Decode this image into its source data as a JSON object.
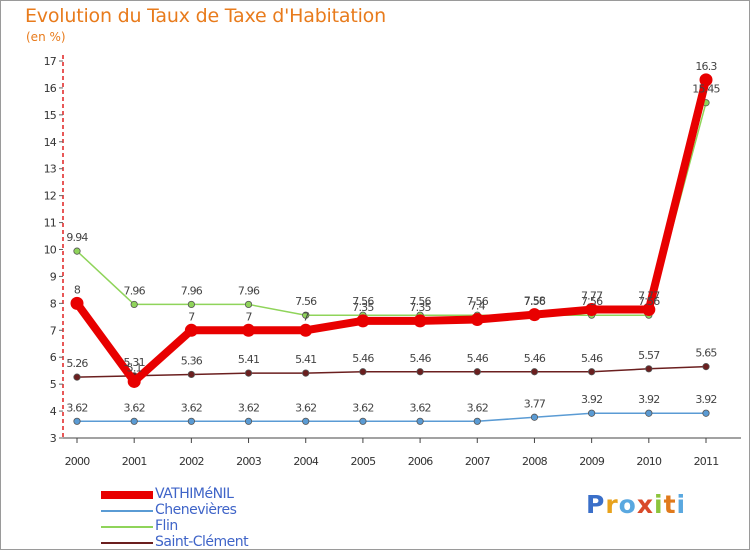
{
  "chart_data": {
    "type": "line",
    "title": "Evolution du Taux de Taxe d'Habitation",
    "subtitle": "(en %)",
    "xlabel": "",
    "ylabel": "",
    "categories": [
      "2000",
      "2001",
      "2002",
      "2003",
      "2004",
      "2005",
      "2006",
      "2007",
      "2008",
      "2009",
      "2010",
      "2011"
    ],
    "ylim": [
      3,
      17
    ],
    "yticks": [
      3,
      4,
      5,
      6,
      7,
      8,
      9,
      10,
      11,
      12,
      13,
      14,
      15,
      16,
      17
    ],
    "grid": false,
    "legend_position": "bottom-left",
    "series": [
      {
        "name": "VATHIMéNIL",
        "color": "#e80000",
        "values": [
          8,
          5.1,
          7,
          7,
          7,
          7.35,
          7.35,
          7.4,
          7.58,
          7.77,
          7.77,
          16.3
        ],
        "labels": [
          "8",
          "5.1",
          "7",
          "7",
          "7",
          "7.35",
          "7.35",
          "7.4",
          "7.58",
          "7.77",
          "7.77",
          "16.3"
        ]
      },
      {
        "name": "Chenevières",
        "color": "#5a9bd4",
        "values": [
          3.62,
          3.62,
          3.62,
          3.62,
          3.62,
          3.62,
          3.62,
          3.62,
          3.77,
          3.92,
          3.92,
          3.92
        ],
        "labels": [
          "3.62",
          "3.62",
          "3.62",
          "3.62",
          "3.62",
          "3.62",
          "3.62",
          "3.62",
          "3.77",
          "3.92",
          "3.92",
          "3.92"
        ]
      },
      {
        "name": "Flin",
        "color": "#8fd45a",
        "values": [
          9.94,
          7.96,
          7.96,
          7.96,
          7.56,
          7.56,
          7.56,
          7.56,
          7.56,
          7.56,
          7.56,
          15.45
        ],
        "labels": [
          "9.94",
          "7.96",
          "7.96",
          "7.96",
          "7.56",
          "7.56",
          "7.56",
          "7.56",
          "7.56",
          "7.56",
          "7.56",
          "15.45"
        ]
      },
      {
        "name": "Saint-Clément",
        "color": "#6b1f1f",
        "values": [
          5.26,
          5.31,
          5.36,
          5.41,
          5.41,
          5.46,
          5.46,
          5.46,
          5.46,
          5.46,
          5.57,
          5.65
        ],
        "labels": [
          "5.26",
          "5.31",
          "5.36",
          "5.41",
          "5.41",
          "5.46",
          "5.46",
          "5.46",
          "5.46",
          "5.46",
          "5.57",
          "5.65"
        ]
      }
    ]
  },
  "logo": {
    "letters": [
      "P",
      "r",
      "o",
      "x",
      "i",
      "t",
      "i"
    ],
    "colors": [
      "#3a6fc9",
      "#e8a21c",
      "#5aa8e0",
      "#d94a2a",
      "#8cc43c",
      "#e07a1c",
      "#5aa8e0"
    ]
  }
}
